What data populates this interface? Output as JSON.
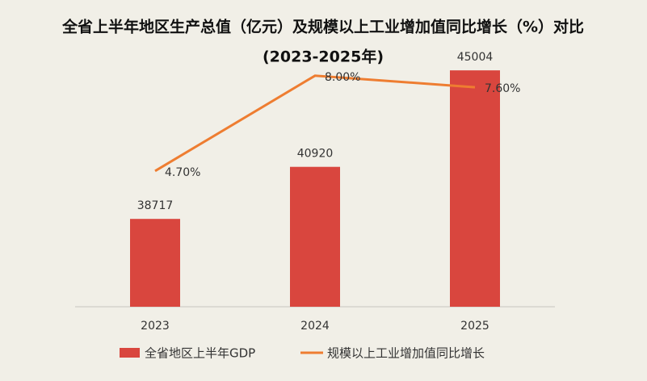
{
  "chart_data": {
    "type": "bar-line",
    "title": [
      "全省上半年地区生产总值（亿元）及规模以上工业增加值同比增长（%）对比",
      "(2023-2025年)"
    ],
    "categories": [
      "2023",
      "2024",
      "2025"
    ],
    "series": [
      {
        "name": "全省地区上半年GDP",
        "type": "bar",
        "color": "#d9463e",
        "values": [
          38717,
          40920,
          45004
        ]
      },
      {
        "name": "规模以上工业增加值同比增长",
        "type": "line",
        "axis": "y2",
        "color": "#ee7d31",
        "values": [
          4.7,
          8.0,
          7.6
        ],
        "value_labels": [
          "4.70%",
          "8.00%",
          "7.60%"
        ]
      }
    ],
    "ylim": [
      35000,
      46000
    ],
    "y2lim": [
      0,
      9
    ]
  }
}
